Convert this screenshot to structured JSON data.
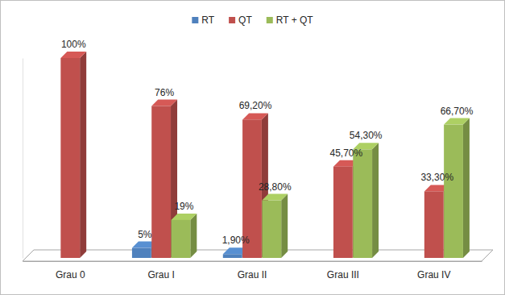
{
  "chart_data": {
    "type": "bar",
    "categories": [
      "Grau 0",
      "Grau I",
      "Grau II",
      "Grau III",
      "Grau IV"
    ],
    "series": [
      {
        "name": "RT",
        "color": "#4f81bd",
        "values": [
          null,
          5,
          1.9,
          null,
          null
        ],
        "value_labels": [
          null,
          "5%",
          "1,90%",
          null,
          null
        ]
      },
      {
        "name": "QT",
        "color": "#c0504d",
        "values": [
          100,
          76,
          69.2,
          45.7,
          33.3
        ],
        "value_labels": [
          "100%",
          "76%",
          "69,20%",
          "45,70%",
          "33,30%"
        ]
      },
      {
        "name": "RT + QT",
        "color": "#9bbb59",
        "values": [
          null,
          19,
          28.8,
          54.3,
          66.7
        ],
        "value_labels": [
          null,
          "19%",
          "28,80%",
          "54,30%",
          "66,70%"
        ]
      }
    ],
    "ylim": [
      0,
      100
    ],
    "legend": "top",
    "data_labels": true,
    "tick_labels": "x"
  }
}
